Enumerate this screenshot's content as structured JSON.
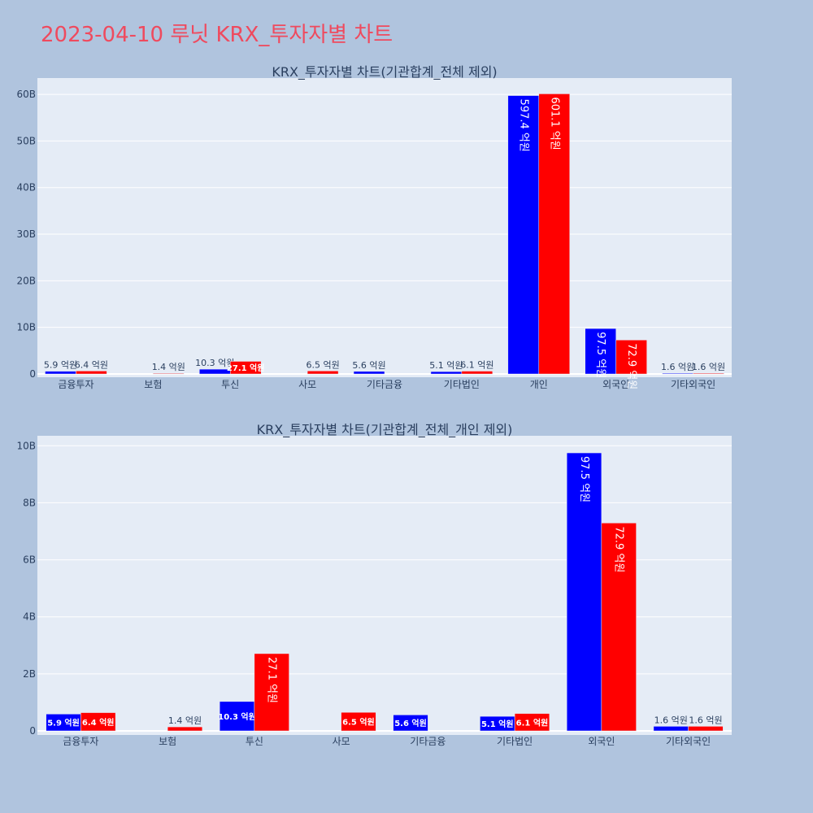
{
  "page_title": "2023-04-10 루닛 KRX_투자자별 차트",
  "colors": {
    "background": "#b0c4de",
    "plot_bg": "#e5ecf6",
    "title": "#ef4a5e",
    "buy": "#0000ff",
    "sell": "#ff0000",
    "text": "#2a3f5f"
  },
  "chart_data": [
    {
      "type": "bar",
      "title": "KRX_투자자별 차트(기관합계_전체 제외)",
      "categories": [
        "금융투자",
        "보험",
        "투신",
        "사모",
        "기타금융",
        "기타법인",
        "개인",
        "외국인",
        "기타외국인"
      ],
      "series": [
        {
          "color": "#0000ff",
          "values": [
            0.59,
            null,
            1.03,
            null,
            0.56,
            0.51,
            59.74,
            9.75,
            0.16
          ],
          "labels": [
            "5.9 억원",
            "",
            "10.3 억원",
            "",
            "5.6 억원",
            "5.1 억원",
            "597.4 억원",
            "97.5 억원",
            "1.6 억원"
          ]
        },
        {
          "color": "#ff0000",
          "values": [
            0.64,
            0.14,
            2.71,
            0.65,
            null,
            0.61,
            60.11,
            7.29,
            0.16
          ],
          "labels": [
            "6.4 억원",
            "1.4 억원",
            "27.1 억원",
            "6.5 억원",
            "",
            "6.1 억원",
            "601.1 억원",
            "72.9 억원",
            "1.6 억원"
          ]
        }
      ],
      "yticks": [
        0,
        10,
        20,
        30,
        40,
        50,
        60
      ],
      "ytick_labels": [
        "0",
        "10B",
        "20B",
        "30B",
        "40B",
        "50B",
        "60B"
      ],
      "ylim": [
        0,
        63.5
      ],
      "grid": true,
      "legend": "none"
    },
    {
      "type": "bar",
      "title": "KRX_투자자별 차트(기관합계_전체_개인 제외)",
      "categories": [
        "금융투자",
        "보험",
        "투신",
        "사모",
        "기타금융",
        "기타법인",
        "외국인",
        "기타외국인"
      ],
      "series": [
        {
          "color": "#0000ff",
          "values": [
            0.59,
            null,
            1.03,
            null,
            0.56,
            0.51,
            9.75,
            0.16
          ],
          "labels": [
            "5.9 억원",
            "",
            "10.3 억원",
            "",
            "5.6 억원",
            "5.1 억원",
            "97.5 억원",
            "1.6 억원"
          ]
        },
        {
          "color": "#ff0000",
          "values": [
            0.64,
            0.14,
            2.71,
            0.65,
            null,
            0.61,
            7.29,
            0.16
          ],
          "labels": [
            "6.4 억원",
            "1.4 억원",
            "27.1 억원",
            "6.5 억원",
            "",
            "6.1 억원",
            "72.9 억원",
            "1.6 억원"
          ]
        }
      ],
      "yticks": [
        0,
        2,
        4,
        6,
        8,
        10
      ],
      "ytick_labels": [
        "0",
        "2B",
        "4B",
        "6B",
        "8B",
        "10B"
      ],
      "ylim": [
        0,
        10.35
      ],
      "grid": true,
      "legend": "none"
    }
  ]
}
